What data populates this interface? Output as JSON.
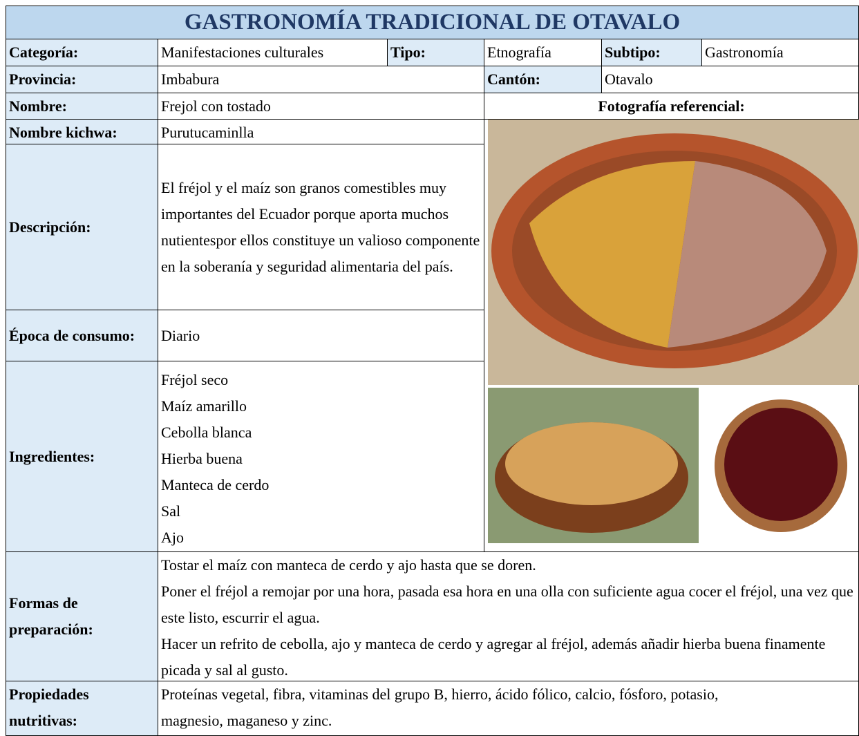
{
  "header": {
    "title": "GASTRONOMÍA TRADICIONAL  DE OTAVALO"
  },
  "row1": {
    "categoria_label": "Categoría:",
    "categoria": "Manifestaciones culturales",
    "tipo_label": "Tipo:",
    "tipo": "Etnografía",
    "subtipo_label": "Subtipo:",
    "subtipo": "Gastronomía"
  },
  "row2": {
    "provincia_label": "Provincia:",
    "provincia": "Imbabura",
    "canton_label": "Cantón:",
    "canton": "Otavalo"
  },
  "row3": {
    "nombre_label": "Nombre:",
    "nombre": "Frejol con tostado",
    "foto_label": "Fotografía referencial:"
  },
  "row4": {
    "kichwa_label": "Nombre kichwa:",
    "kichwa": "Purutucaminlla"
  },
  "descripcion": {
    "label": "Descripción:",
    "text": "El fréjol y el maíz son granos comestibles muy importantes del Ecuador porque aporta muchos nutientespor ellos constituye un valioso componente en la soberanía y seguridad alimentaria del país."
  },
  "epoca": {
    "label": "Época de consumo:",
    "text": "Diario"
  },
  "ingredientes": {
    "label": "Ingredientes:",
    "items": [
      "Fréjol seco",
      "Maíz amarillo",
      "Cebolla blanca",
      "Hierba buena",
      "Manteca de cerdo",
      "Sal",
      "Ajo"
    ]
  },
  "preparacion": {
    "label": "Formas de preparación:",
    "steps": [
      "Tostar el maíz con manteca de cerdo y ajo hasta que se doren.",
      "Poner el fréjol a remojar por una hora, pasada esa hora en una olla con suficiente agua cocer el fréjol, una vez que este listo, escurrir el agua.",
      "Hacer un refrito de cebolla, ajo y manteca de cerdo y agregar al fréjol, además añadir hierba buena finamente picada y sal al gusto."
    ]
  },
  "propiedades": {
    "label": "Propiedades nutritivas:",
    "text": "Proteínas vegetal, fibra, vitaminas del grupo B, hierro, ácido fólico, calcio, fósforo, potasio, magnesio, maganeso y zinc."
  }
}
